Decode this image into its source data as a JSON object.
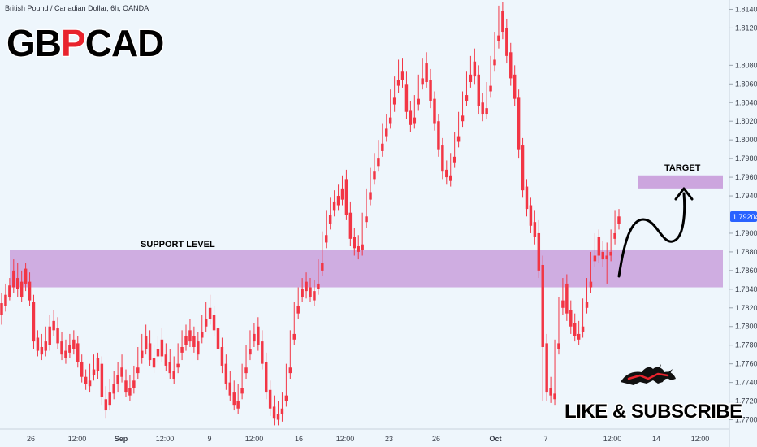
{
  "header": {
    "source": "British Pound / Canadian Dollar, 6h, OANDA",
    "symbol": "GBPCAD"
  },
  "colors": {
    "background": "#eef6fc",
    "up": "#2962ff",
    "down": "#f23645",
    "zone": "#c9a0dc",
    "price_tag": "#2962ff",
    "symbol_text": "#000000",
    "symbol_accent": "#e8232d"
  },
  "annotations": {
    "support_label": "SUPPORT LEVEL",
    "target_label": "TARGET",
    "cta": "LIKE & SUBSCRIBE",
    "logo_icon": "bull-bear-icon"
  },
  "chart_data": {
    "type": "candlestick",
    "title": "British Pound / Canadian Dollar, 6h, OANDA",
    "ylim": [
      1.769,
      1.815
    ],
    "y_ticks": [
      "1.81400",
      "1.81200",
      "1.80800",
      "1.80600",
      "1.80400",
      "1.80200",
      "1.80000",
      "1.79800",
      "1.79600",
      "1.79400",
      "1.79000",
      "1.78800",
      "1.78600",
      "1.78400",
      "1.78200",
      "1.78000",
      "1.77800",
      "1.77600",
      "1.77400",
      "1.77200",
      "1.77000"
    ],
    "x_ticks": [
      "26",
      "12:00",
      "Sep",
      "12:00",
      "9",
      "12:00",
      "16",
      "12:00",
      "23",
      "26",
      "Oct",
      "7",
      "12:00",
      "14",
      "12:00"
    ],
    "last_price": "1.79204",
    "support_zone": [
      1.7842,
      1.7882
    ],
    "target_zone": [
      1.7948,
      1.7962
    ],
    "candles": [
      [
        1.7825,
        1.7836,
        1.7812,
        1.7802
      ],
      [
        1.7834,
        1.7846,
        1.7822,
        1.7816
      ],
      [
        1.7844,
        1.7852,
        1.7832,
        1.7828
      ],
      [
        1.786,
        1.7872,
        1.7842,
        1.7836
      ],
      [
        1.7852,
        1.7868,
        1.784,
        1.7832
      ],
      [
        1.7848,
        1.786,
        1.7832,
        1.7826
      ],
      [
        1.7862,
        1.7868,
        1.7846,
        1.7838
      ],
      [
        1.7848,
        1.7858,
        1.7828,
        1.7822
      ],
      [
        1.7826,
        1.7834,
        1.7784,
        1.7776
      ],
      [
        1.7788,
        1.7796,
        1.7774,
        1.7768
      ],
      [
        1.7778,
        1.7792,
        1.777,
        1.7764
      ],
      [
        1.7784,
        1.78,
        1.7774,
        1.7768
      ],
      [
        1.78,
        1.7812,
        1.778,
        1.7774
      ],
      [
        1.7806,
        1.7818,
        1.7796,
        1.779
      ],
      [
        1.7798,
        1.781,
        1.7782,
        1.7776
      ],
      [
        1.7784,
        1.7794,
        1.777,
        1.7764
      ],
      [
        1.7774,
        1.7786,
        1.7766,
        1.776
      ],
      [
        1.778,
        1.7792,
        1.7772,
        1.7766
      ],
      [
        1.7786,
        1.7796,
        1.7776,
        1.777
      ],
      [
        1.7782,
        1.779,
        1.7762,
        1.7756
      ],
      [
        1.7762,
        1.777,
        1.7746,
        1.774
      ],
      [
        1.7746,
        1.7754,
        1.7738,
        1.7732
      ],
      [
        1.7742,
        1.776,
        1.7736,
        1.773
      ],
      [
        1.7754,
        1.777,
        1.7748,
        1.7742
      ],
      [
        1.7766,
        1.7772,
        1.7752,
        1.7744
      ],
      [
        1.776,
        1.7768,
        1.7724,
        1.7716
      ],
      [
        1.7722,
        1.7736,
        1.771,
        1.7702
      ],
      [
        1.773,
        1.7744,
        1.7716,
        1.771
      ],
      [
        1.7738,
        1.7752,
        1.7728,
        1.7722
      ],
      [
        1.7748,
        1.7762,
        1.7738,
        1.773
      ],
      [
        1.7756,
        1.777,
        1.7746,
        1.774
      ],
      [
        1.7742,
        1.7754,
        1.773,
        1.7724
      ],
      [
        1.7734,
        1.7748,
        1.7726,
        1.772
      ],
      [
        1.7742,
        1.7758,
        1.7734,
        1.7728
      ],
      [
        1.7756,
        1.7778,
        1.775,
        1.7744
      ],
      [
        1.7774,
        1.7792,
        1.7766,
        1.776
      ],
      [
        1.779,
        1.7802,
        1.7776,
        1.777
      ],
      [
        1.7782,
        1.7796,
        1.7764,
        1.7758
      ],
      [
        1.7766,
        1.778,
        1.7756,
        1.775
      ],
      [
        1.7776,
        1.779,
        1.7768,
        1.7762
      ],
      [
        1.7786,
        1.7798,
        1.7768,
        1.7762
      ],
      [
        1.777,
        1.7782,
        1.7758,
        1.7752
      ],
      [
        1.7762,
        1.7776,
        1.775,
        1.7744
      ],
      [
        1.7752,
        1.7768,
        1.7744,
        1.7738
      ],
      [
        1.776,
        1.7782,
        1.7756,
        1.775
      ],
      [
        1.7778,
        1.7796,
        1.7772,
        1.7764
      ],
      [
        1.779,
        1.7802,
        1.778,
        1.7774
      ],
      [
        1.7796,
        1.7808,
        1.7784,
        1.7778
      ],
      [
        1.779,
        1.78,
        1.7778,
        1.7772
      ],
      [
        1.7784,
        1.7794,
        1.777,
        1.7764
      ],
      [
        1.7794,
        1.7812,
        1.7788,
        1.7782
      ],
      [
        1.7808,
        1.7826,
        1.78,
        1.7794
      ],
      [
        1.782,
        1.7834,
        1.7808,
        1.7802
      ],
      [
        1.7812,
        1.7822,
        1.7796,
        1.779
      ],
      [
        1.7798,
        1.781,
        1.7776,
        1.777
      ],
      [
        1.7778,
        1.7788,
        1.7758,
        1.775
      ],
      [
        1.776,
        1.777,
        1.7738,
        1.7732
      ],
      [
        1.774,
        1.7752,
        1.7726,
        1.772
      ],
      [
        1.773,
        1.7742,
        1.7716,
        1.771
      ],
      [
        1.772,
        1.7738,
        1.7712,
        1.7706
      ],
      [
        1.7734,
        1.776,
        1.7728,
        1.7722
      ],
      [
        1.7756,
        1.778,
        1.775,
        1.7744
      ],
      [
        1.7776,
        1.7796,
        1.777,
        1.7764
      ],
      [
        1.7792,
        1.7804,
        1.7784,
        1.7778
      ],
      [
        1.78,
        1.781,
        1.778,
        1.7774
      ],
      [
        1.7784,
        1.7796,
        1.776,
        1.7754
      ],
      [
        1.7762,
        1.7772,
        1.773,
        1.7722
      ],
      [
        1.7732,
        1.7742,
        1.7712,
        1.7704
      ],
      [
        1.7714,
        1.7726,
        1.7702,
        1.7694
      ],
      [
        1.7706,
        1.772,
        1.77,
        1.7694
      ],
      [
        1.7712,
        1.773,
        1.7706,
        1.7698
      ],
      [
        1.7726,
        1.776,
        1.772,
        1.7714
      ],
      [
        1.7756,
        1.7796,
        1.775,
        1.7744
      ],
      [
        1.7792,
        1.7826,
        1.7786,
        1.778
      ],
      [
        1.7822,
        1.7842,
        1.7814,
        1.7808
      ],
      [
        1.784,
        1.7852,
        1.7832,
        1.7826
      ],
      [
        1.7848,
        1.7858,
        1.7838,
        1.783
      ],
      [
        1.7842,
        1.7852,
        1.7832,
        1.7826
      ],
      [
        1.7838,
        1.785,
        1.7828,
        1.7822
      ],
      [
        1.7846,
        1.7872,
        1.784,
        1.7834
      ],
      [
        1.7868,
        1.7902,
        1.786,
        1.7854
      ],
      [
        1.7898,
        1.7924,
        1.789,
        1.7884
      ],
      [
        1.792,
        1.7938,
        1.791,
        1.7904
      ],
      [
        1.7934,
        1.7946,
        1.7924,
        1.7918
      ],
      [
        1.794,
        1.7952,
        1.793,
        1.7924
      ],
      [
        1.7948,
        1.7962,
        1.7936,
        1.793
      ],
      [
        1.7958,
        1.7968,
        1.792,
        1.7914
      ],
      [
        1.7922,
        1.7934,
        1.7894,
        1.7886
      ],
      [
        1.7896,
        1.7906,
        1.7884,
        1.7876
      ],
      [
        1.7886,
        1.7898,
        1.788,
        1.7872
      ],
      [
        1.7888,
        1.7922,
        1.7882,
        1.7876
      ],
      [
        1.7918,
        1.7948,
        1.7912,
        1.7906
      ],
      [
        1.7944,
        1.797,
        1.7936,
        1.793
      ],
      [
        1.7966,
        1.7986,
        1.7958,
        1.7952
      ],
      [
        1.798,
        1.8,
        1.7972,
        1.7966
      ],
      [
        1.7996,
        1.8018,
        1.7988,
        1.7982
      ],
      [
        1.8012,
        1.8028,
        1.8004,
        1.7998
      ],
      [
        1.8024,
        1.8054,
        1.8018,
        1.8012
      ],
      [
        1.8046,
        1.8068,
        1.8038,
        1.803
      ],
      [
        1.8064,
        1.8086,
        1.8058,
        1.805
      ],
      [
        1.8074,
        1.8088,
        1.8064,
        1.8056
      ],
      [
        1.806,
        1.8074,
        1.803,
        1.8022
      ],
      [
        1.8032,
        1.8042,
        1.8016,
        1.8008
      ],
      [
        1.8024,
        1.8048,
        1.8018,
        1.8012
      ],
      [
        1.8044,
        1.807,
        1.8038,
        1.8032
      ],
      [
        1.8066,
        1.8088,
        1.806,
        1.8054
      ],
      [
        1.8082,
        1.8094,
        1.8062,
        1.8056
      ],
      [
        1.8064,
        1.8076,
        1.8042,
        1.8034
      ],
      [
        1.8044,
        1.8052,
        1.8018,
        1.801
      ],
      [
        1.802,
        1.8028,
        1.799,
        1.7982
      ],
      [
        1.7994,
        1.8002,
        1.7966,
        1.7958
      ],
      [
        1.7968,
        1.7978,
        1.796,
        1.7952
      ],
      [
        1.7962,
        1.7986,
        1.7956,
        1.795
      ],
      [
        1.7982,
        1.8008,
        1.7976,
        1.797
      ],
      [
        1.8004,
        1.803,
        1.7998,
        1.7992
      ],
      [
        1.8026,
        1.8052,
        1.802,
        1.8014
      ],
      [
        1.8048,
        1.8074,
        1.8042,
        1.8036
      ],
      [
        1.807,
        1.809,
        1.8062,
        1.8056
      ],
      [
        1.8084,
        1.8098,
        1.8068,
        1.806
      ],
      [
        1.807,
        1.808,
        1.8036,
        1.8028
      ],
      [
        1.804,
        1.805,
        1.8028,
        1.802
      ],
      [
        1.8034,
        1.8062,
        1.8028,
        1.8022
      ],
      [
        1.8058,
        1.809,
        1.8052,
        1.8046
      ],
      [
        1.8086,
        1.8116,
        1.808,
        1.8074
      ],
      [
        1.8112,
        1.8144,
        1.8106,
        1.8098
      ],
      [
        1.8138,
        1.8148,
        1.8116,
        1.8108
      ],
      [
        1.812,
        1.813,
        1.809,
        1.8082
      ],
      [
        1.8094,
        1.8104,
        1.8066,
        1.8058
      ],
      [
        1.807,
        1.808,
        1.8044,
        1.8036
      ],
      [
        1.8046,
        1.8054,
        1.799,
        1.798
      ],
      [
        1.7994,
        1.8002,
        1.7946,
        1.7938
      ],
      [
        1.795,
        1.7958,
        1.7926,
        1.7918
      ],
      [
        1.793,
        1.7938,
        1.7908,
        1.79
      ],
      [
        1.7912,
        1.7924,
        1.7896,
        1.7888
      ],
      [
        1.79,
        1.7914,
        1.786,
        1.7852
      ],
      [
        1.7866,
        1.7876,
        1.7778,
        1.772
      ],
      [
        1.7782,
        1.7792,
        1.773,
        1.772
      ],
      [
        1.7734,
        1.7746,
        1.7726,
        1.7718
      ],
      [
        1.7728,
        1.7786,
        1.7722,
        1.7716
      ],
      [
        1.7782,
        1.7832,
        1.7776,
        1.777
      ],
      [
        1.7828,
        1.7852,
        1.782,
        1.7812
      ],
      [
        1.7846,
        1.7856,
        1.7814,
        1.7806
      ],
      [
        1.7818,
        1.7828,
        1.78,
        1.7792
      ],
      [
        1.7804,
        1.7814,
        1.779,
        1.7784
      ],
      [
        1.7792,
        1.7806,
        1.7786,
        1.778
      ],
      [
        1.78,
        1.783,
        1.7794,
        1.7788
      ],
      [
        1.7826,
        1.7852,
        1.782,
        1.7814
      ],
      [
        1.7848,
        1.788,
        1.7842,
        1.7836
      ],
      [
        1.7876,
        1.79,
        1.787,
        1.7864
      ],
      [
        1.7896,
        1.7904,
        1.7876,
        1.7868
      ],
      [
        1.788,
        1.7892,
        1.7872,
        1.7864
      ],
      [
        1.7876,
        1.789,
        1.7872,
        1.7846
      ],
      [
        1.788,
        1.7904,
        1.7876,
        1.787
      ],
      [
        1.79,
        1.7924,
        1.7894,
        1.7888
      ],
      [
        1.7918,
        1.7926,
        1.791,
        1.7904
      ]
    ]
  }
}
